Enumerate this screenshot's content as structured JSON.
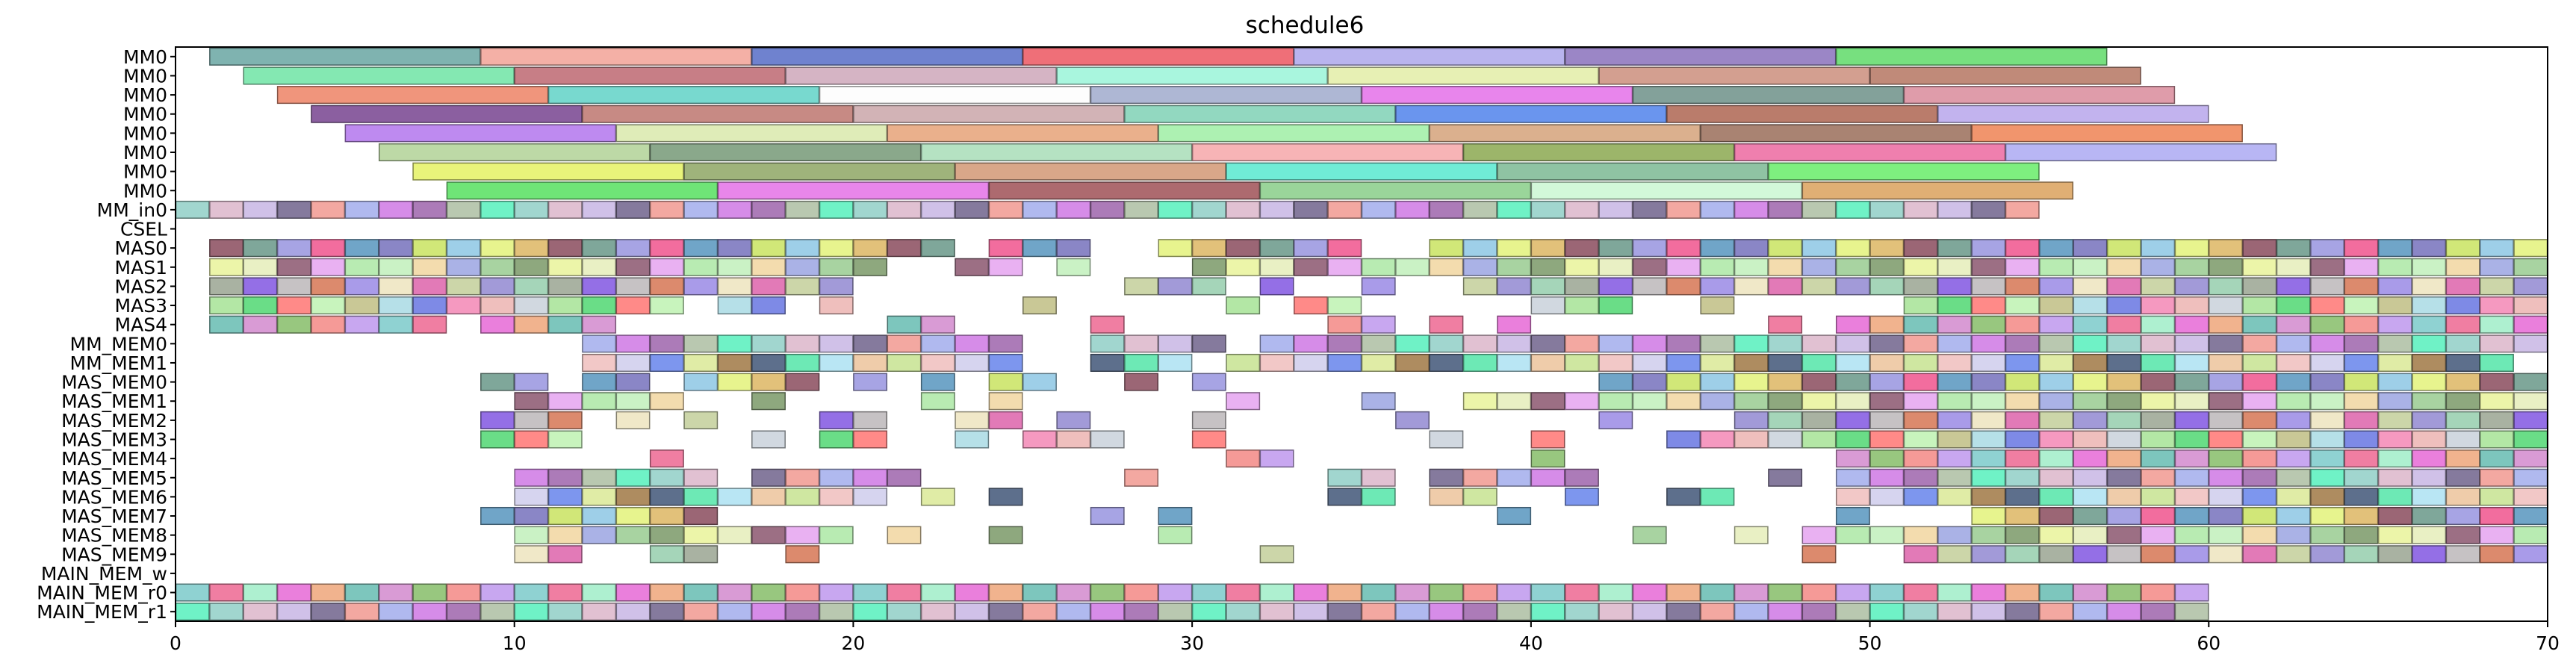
{
  "chart_data": {
    "type": "gantt",
    "title": "schedule6",
    "xlim": [
      0,
      70
    ],
    "x_ticks": [
      "0",
      "10",
      "20",
      "30",
      "40",
      "50",
      "60",
      "70"
    ],
    "rows": [
      "MM0",
      "MM0",
      "MM0",
      "MM0",
      "MM0",
      "MM0",
      "MM0",
      "MM0",
      "MM_in0",
      "CSEL",
      "MAS0",
      "MAS1",
      "MAS2",
      "MAS3",
      "MAS4",
      "MM_MEM0",
      "MM_MEM1",
      "MAS_MEM0",
      "MAS_MEM1",
      "MAS_MEM2",
      "MAS_MEM3",
      "MAS_MEM4",
      "MAS_MEM5",
      "MAS_MEM6",
      "MAS_MEM7",
      "MAS_MEM8",
      "MAS_MEM9",
      "MAIN_MEM_w",
      "MAIN_MEM_r0",
      "MAIN_MEM_r1"
    ],
    "mm0_rows": [
      [
        [
          1,
          9,
          "#7fb3b0"
        ],
        [
          9,
          17,
          "#f4b0a6"
        ],
        [
          17,
          25,
          "#6f82cf"
        ],
        [
          25,
          33,
          "#ef6f78"
        ],
        [
          33,
          41,
          "#b9b4ee"
        ],
        [
          41,
          49,
          "#9b86c6"
        ],
        [
          49,
          57,
          "#77e07f"
        ]
      ],
      [
        [
          2,
          10,
          "#84e8b2"
        ],
        [
          10,
          18,
          "#c77e86"
        ],
        [
          18,
          26,
          "#d5b4c4"
        ],
        [
          26,
          34,
          "#a9f6de"
        ],
        [
          34,
          42,
          "#e7f0b4"
        ],
        [
          42,
          50,
          "#d39f90"
        ],
        [
          50,
          58,
          "#c08a79"
        ]
      ],
      [
        [
          3,
          11,
          "#f0957c"
        ],
        [
          11,
          19,
          "#78d9cf"
        ],
        [
          19,
          27,
          "#fdfdfd"
        ],
        [
          27,
          35,
          "#aeb7d4"
        ],
        [
          35,
          43,
          "#e885ec"
        ],
        [
          43,
          51,
          "#83a19a"
        ],
        [
          51,
          59,
          "#df9caa"
        ]
      ],
      [
        [
          4,
          12,
          "#8b5fa0"
        ],
        [
          12,
          20,
          "#c78a84"
        ],
        [
          20,
          28,
          "#d2b3b6"
        ],
        [
          28,
          36,
          "#92d8c0"
        ],
        [
          36,
          44,
          "#6a95ee"
        ],
        [
          44,
          52,
          "#ba7c6b"
        ],
        [
          52,
          60,
          "#c2b3ee"
        ]
      ],
      [
        [
          5,
          13,
          "#be8af0"
        ],
        [
          13,
          21,
          "#dfecb8"
        ],
        [
          21,
          29,
          "#eab08c"
        ],
        [
          29,
          37,
          "#adf1b2"
        ],
        [
          37,
          45,
          "#dbb08e"
        ],
        [
          45,
          53,
          "#a98372"
        ],
        [
          53,
          61,
          "#f1956d"
        ]
      ],
      [
        [
          6,
          14,
          "#bdd9a6"
        ],
        [
          14,
          22,
          "#8aa88b"
        ],
        [
          22,
          30,
          "#b5e2c2"
        ],
        [
          30,
          38,
          "#f7b4b6"
        ],
        [
          38,
          46,
          "#9cb56a"
        ],
        [
          46,
          54,
          "#ef7fae"
        ],
        [
          54,
          62,
          "#b8b6f4"
        ]
      ],
      [
        [
          7,
          15,
          "#e9f47a"
        ],
        [
          15,
          23,
          "#9fb37b"
        ],
        [
          23,
          31,
          "#d9a789"
        ],
        [
          31,
          39,
          "#70ecd6"
        ],
        [
          39,
          47,
          "#8fc3a3"
        ],
        [
          47,
          55,
          "#7eef7f"
        ]
      ],
      [
        [
          8,
          16,
          "#6fe477"
        ],
        [
          16,
          24,
          "#e886ea"
        ],
        [
          24,
          32,
          "#ad6a6f"
        ],
        [
          32,
          40,
          "#9ad59a"
        ],
        [
          40,
          48,
          "#d2f8d9"
        ],
        [
          48,
          56,
          "#e0af74"
        ]
      ]
    ],
    "unit_rows": [
      {
        "row": 8,
        "start": 0,
        "end": 55
      },
      {
        "row": 10,
        "start": 1,
        "end": 70,
        "gaps": [
          [
            23,
            24
          ],
          [
            27,
            29
          ],
          [
            35,
            37
          ]
        ]
      },
      {
        "row": 11,
        "start": 1,
        "end": 70,
        "gaps": [
          [
            21,
            23
          ],
          [
            25,
            26
          ],
          [
            27,
            30
          ]
        ]
      },
      {
        "row": 12,
        "start": 1,
        "end": 70,
        "gaps": [
          [
            20,
            28
          ],
          [
            31,
            32
          ],
          [
            33,
            35
          ],
          [
            36,
            38
          ]
        ]
      },
      {
        "row": 13,
        "start": 1,
        "end": 70,
        "gaps": [
          [
            15,
            16
          ],
          [
            18,
            19
          ],
          [
            20,
            25
          ],
          [
            26,
            31
          ],
          [
            32,
            33
          ],
          [
            35,
            40
          ],
          [
            43,
            45
          ],
          [
            46,
            51
          ]
        ]
      },
      {
        "row": 14,
        "start": 1,
        "end": 70,
        "gaps": [
          [
            8,
            9
          ],
          [
            13,
            21
          ],
          [
            23,
            27
          ],
          [
            28,
            34
          ],
          [
            36,
            37
          ],
          [
            38,
            39
          ],
          [
            40,
            47
          ],
          [
            48,
            49
          ]
        ]
      },
      {
        "row": 15,
        "start": 12,
        "end": 70,
        "gaps": [
          [
            25,
            27
          ],
          [
            31,
            32
          ]
        ]
      },
      {
        "row": 16,
        "start": 12,
        "end": 69,
        "gaps": [
          [
            25,
            27
          ],
          [
            30,
            31
          ]
        ]
      },
      {
        "row": 17,
        "start": 9,
        "end": 70,
        "gaps": [
          [
            11,
            12
          ],
          [
            14,
            15
          ],
          [
            19,
            20
          ],
          [
            21,
            22
          ],
          [
            23,
            24
          ],
          [
            26,
            28
          ],
          [
            29,
            30
          ],
          [
            31,
            42
          ]
        ]
      },
      {
        "row": 18,
        "start": 10,
        "end": 70,
        "gaps": [
          [
            15,
            17
          ],
          [
            18,
            22
          ],
          [
            23,
            24
          ],
          [
            25,
            31
          ],
          [
            32,
            35
          ],
          [
            36,
            38
          ]
        ]
      },
      {
        "row": 19,
        "start": 9,
        "end": 70,
        "gaps": [
          [
            12,
            13
          ],
          [
            14,
            15
          ],
          [
            16,
            19
          ],
          [
            21,
            23
          ],
          [
            25,
            26
          ],
          [
            27,
            30
          ],
          [
            31,
            36
          ],
          [
            37,
            42
          ],
          [
            43,
            46
          ]
        ]
      },
      {
        "row": 20,
        "start": 9,
        "end": 70,
        "gaps": [
          [
            12,
            17
          ],
          [
            18,
            19
          ],
          [
            21,
            23
          ],
          [
            24,
            25
          ],
          [
            28,
            30
          ],
          [
            31,
            37
          ],
          [
            38,
            40
          ],
          [
            41,
            44
          ]
        ]
      },
      {
        "row": 21,
        "start": 14,
        "end": 70,
        "gaps": [
          [
            15,
            31
          ],
          [
            33,
            40
          ],
          [
            41,
            49
          ]
        ]
      },
      {
        "row": 22,
        "start": 10,
        "end": 70,
        "gaps": [
          [
            16,
            17
          ],
          [
            22,
            28
          ],
          [
            29,
            34
          ],
          [
            36,
            37
          ],
          [
            42,
            47
          ],
          [
            48,
            49
          ]
        ]
      },
      {
        "row": 23,
        "start": 10,
        "end": 70,
        "gaps": [
          [
            21,
            22
          ],
          [
            23,
            24
          ],
          [
            25,
            34
          ],
          [
            36,
            37
          ],
          [
            39,
            41
          ],
          [
            42,
            44
          ],
          [
            46,
            49
          ]
        ]
      },
      {
        "row": 24,
        "start": 9,
        "end": 70,
        "gaps": [
          [
            16,
            27
          ],
          [
            28,
            29
          ],
          [
            30,
            39
          ],
          [
            40,
            49
          ],
          [
            50,
            53
          ]
        ]
      },
      {
        "row": 25,
        "start": 10,
        "end": 70,
        "gaps": [
          [
            20,
            21
          ],
          [
            22,
            24
          ],
          [
            25,
            29
          ],
          [
            30,
            43
          ],
          [
            44,
            46
          ],
          [
            47,
            48
          ]
        ]
      },
      {
        "row": 26,
        "start": 10,
        "end": 70,
        "gaps": [
          [
            12,
            14
          ],
          [
            16,
            18
          ],
          [
            19,
            32
          ],
          [
            33,
            48
          ],
          [
            49,
            51
          ]
        ]
      },
      {
        "row": 28,
        "start": 0,
        "end": 60
      },
      {
        "row": 29,
        "start": 0,
        "end": 60
      }
    ],
    "unit_palette": [
      "#f59a97",
      "#b6e0e8",
      "#ccd6a9",
      "#8ea87e",
      "#7fa79a",
      "#cfe7a1",
      "#d68ce8",
      "#c8a7f0",
      "#7e8ae6",
      "#a29ad8",
      "#ecf5a9",
      "#a7a4e4",
      "#f2c8c7",
      "#ac7bb8",
      "#8fd2d2",
      "#f599c0",
      "#a5d5b9",
      "#e9f0c4",
      "#f26d9e",
      "#d6d4ef",
      "#b9c8b0",
      "#f07ea2",
      "#efbfbd",
      "#a9b2a2",
      "#9c6f84",
      "#70a5c8",
      "#7d96ee",
      "#6ff2c6",
      "#aef0d0",
      "#d1d8e0",
      "#946fe6",
      "#e9b1f2",
      "#8a86c6",
      "#e0eca6",
      "#a1d6cf",
      "#ea7fdc",
      "#b3e7a5",
      "#c6c2c4",
      "#b8ebb2",
      "#d1e778",
      "#ae8c60",
      "#e1c1d2",
      "#f1b38e",
      "#6add87",
      "#dc8a6d",
      "#caf2c5",
      "#9ecfe8",
      "#5d6f8c",
      "#d0c1e8",
      "#7dc6bd",
      "#ff8a88",
      "#a99be9",
      "#f3dcae",
      "#e7f48e",
      "#6de9b5",
      "#857a9d",
      "#d99bd5",
      "#c8f4bd",
      "#f0e8c8",
      "#aab2e6",
      "#e2c17a",
      "#b9e6f4",
      "#f3a8a1",
      "#98c77f",
      "#c9c896",
      "#e27ab7",
      "#a8d3a1",
      "#9b6675",
      "#efccaa",
      "#b0b9ef"
    ]
  }
}
